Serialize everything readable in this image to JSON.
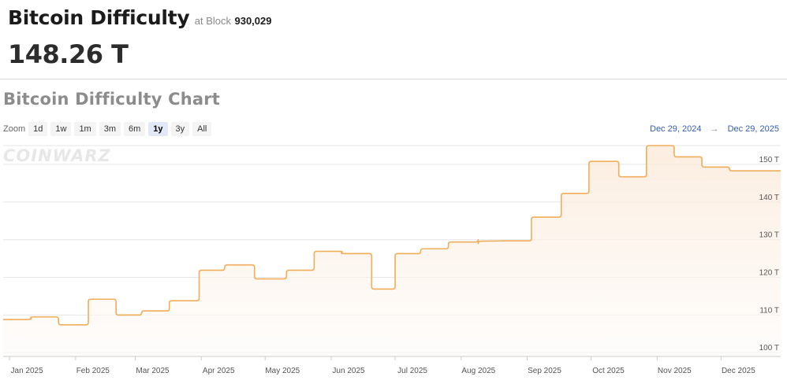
{
  "header": {
    "title": "Bitcoin Difficulty",
    "at_block_label": "at Block",
    "block_number": "930,029",
    "current_value": "148.26 T"
  },
  "chart_section": {
    "title": "Bitcoin Difficulty Chart",
    "watermark": "COINWARZ",
    "zoom": {
      "label": "Zoom",
      "buttons": [
        "1d",
        "1w",
        "1m",
        "3m",
        "6m",
        "1y",
        "3y",
        "All"
      ],
      "active": "1y"
    },
    "range": {
      "from": "Dec 29, 2024",
      "arrow": "→",
      "to": "Dec 29, 2025"
    }
  },
  "colors": {
    "line": "#f0ad5a",
    "area_top": "#fbe8d6",
    "area_bottom": "#fdfbf9",
    "grid": "#e6e6e6",
    "range_text": "#335cad"
  },
  "chart_data": {
    "type": "area",
    "title": "Bitcoin Difficulty Chart",
    "ylabel": "",
    "xlabel": "",
    "ylim": [
      99,
      155
    ],
    "y_ticks": [
      100,
      110,
      120,
      130,
      140,
      150
    ],
    "y_tick_labels": [
      "100 T",
      "110 T",
      "120 T",
      "130 T",
      "140 T",
      "150 T"
    ],
    "y_tick_side": "right",
    "x_range": [
      "2024-12-29",
      "2025-12-29"
    ],
    "x_ticks": [
      "2025-01-01",
      "2025-02-01",
      "2025-03-01",
      "2025-04-01",
      "2025-05-01",
      "2025-06-01",
      "2025-07-01",
      "2025-08-01",
      "2025-09-01",
      "2025-10-01",
      "2025-11-01",
      "2025-12-01"
    ],
    "x_tick_labels": [
      "Jan 2025",
      "Feb 2025",
      "Mar 2025",
      "Apr 2025",
      "May 2025",
      "Jun 2025",
      "Jul 2025",
      "Aug 2025",
      "Sep 2025",
      "Oct 2025",
      "Nov 2025",
      "Dec 2025"
    ],
    "grid": true,
    "legend": "none",
    "series": [
      {
        "step": true,
        "x": [
          "2024-12-29",
          "2025-01-11",
          "2025-01-24",
          "2025-02-07",
          "2025-02-20",
          "2025-03-04",
          "2025-03-17",
          "2025-03-31",
          "2025-04-12",
          "2025-04-26",
          "2025-05-11",
          "2025-05-24",
          "2025-06-06",
          "2025-06-20",
          "2025-07-01",
          "2025-07-13",
          "2025-07-26",
          "2025-08-09",
          "2025-08-21",
          "2025-09-03",
          "2025-09-17",
          "2025-09-30",
          "2025-10-14",
          "2025-10-27",
          "2025-11-09",
          "2025-11-22",
          "2025-12-05",
          "2025-12-29"
        ],
        "values": [
          108.8,
          109.5,
          107.4,
          114.2,
          110.0,
          111.1,
          113.8,
          121.9,
          123.3,
          119.6,
          121.9,
          126.9,
          126.3,
          116.9,
          126.3,
          127.6,
          129.4,
          129.6,
          129.7,
          136.0,
          142.3,
          150.8,
          146.7,
          155.0,
          152.0,
          149.3,
          148.3,
          148.3
        ]
      }
    ]
  }
}
